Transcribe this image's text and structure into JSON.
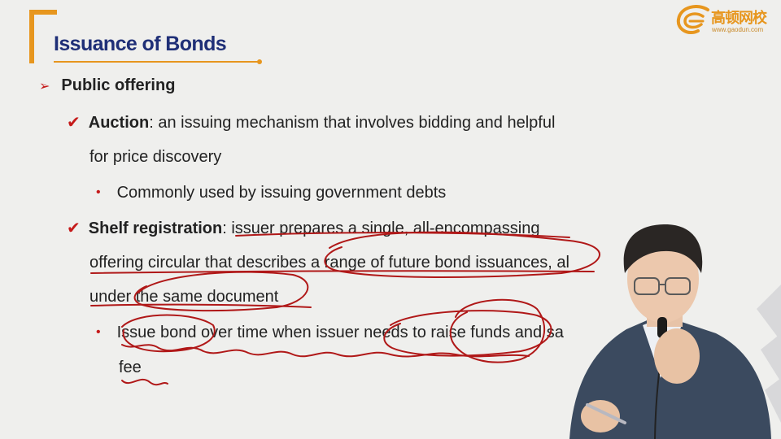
{
  "slide": {
    "title": "Issuance of Bonds",
    "brand": {
      "cn": "高顿网校",
      "url": "www.gaodun.com"
    },
    "points": {
      "p1": "Public offering",
      "a_term": "Auction",
      "a_def_1": ": an issuing mechanism that involves bidding and helpful",
      "a_def_2": "for price discovery",
      "a_sub": "Commonly used by issuing government debts",
      "s_term": "Shelf registration",
      "s_def_1": ": issuer prepares a single, all-encompassing",
      "s_def_2": "offering circular that describes a range of future bond issuances, al",
      "s_def_3": "under the same document",
      "s_sub_1": "Issue bond over time when issuer needs to raise funds and sa",
      "s_sub_2": "fee"
    },
    "icons": {
      "bullet": "arrow-bullet-icon",
      "check": "checkmark-icon",
      "dot": "dot-bullet-icon"
    },
    "colors": {
      "title": "#1f2f77",
      "accent": "#e7961e",
      "bullet": "#c51a1a",
      "annotation": "#b01818"
    }
  }
}
